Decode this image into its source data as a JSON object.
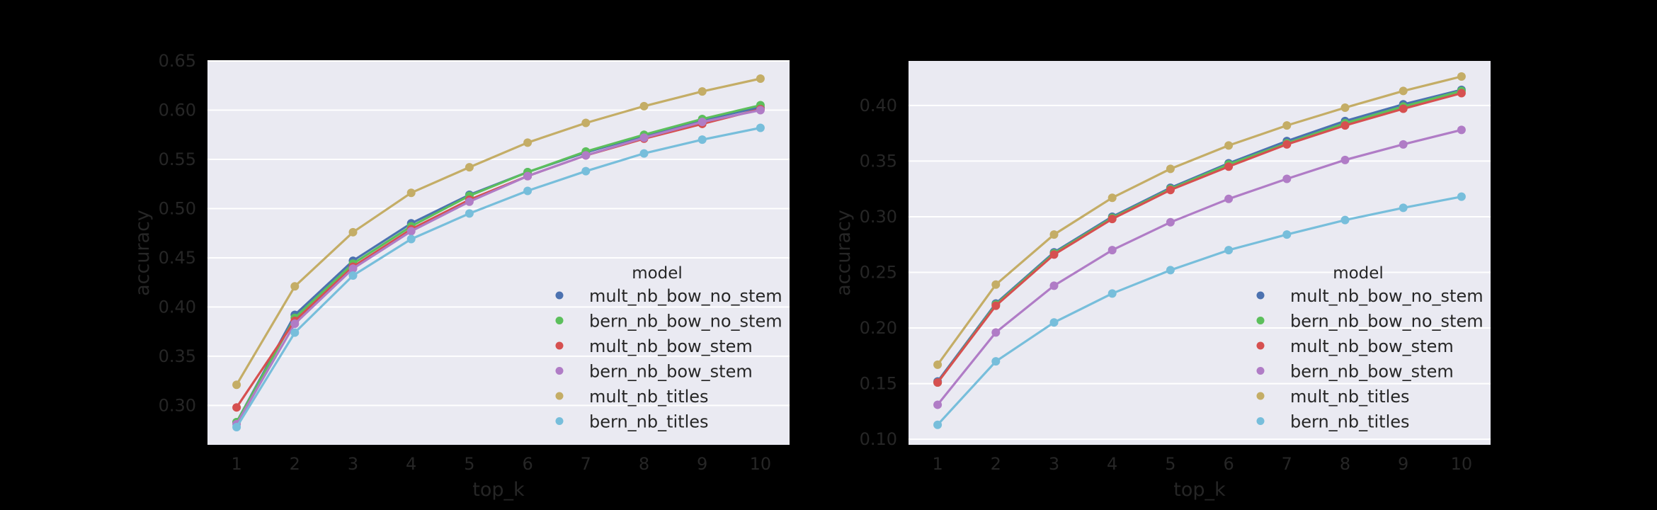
{
  "colors": {
    "figure_bg": "#000000",
    "plot_bg": "#eaeaf2",
    "grid": "#ffffff",
    "text": "#262626",
    "series": [
      "#4c72b0",
      "#5cbf5c",
      "#d65050",
      "#b07cc6",
      "#c4ad66",
      "#77bedb"
    ]
  },
  "chart_data": [
    {
      "type": "line",
      "title": "",
      "xlabel": "top_k",
      "ylabel": "accuracy",
      "x": [
        1,
        2,
        3,
        4,
        5,
        6,
        7,
        8,
        9,
        10
      ],
      "xticks": [
        "1",
        "2",
        "3",
        "4",
        "5",
        "6",
        "7",
        "8",
        "9",
        "10"
      ],
      "ylim": [
        0.26,
        0.65
      ],
      "yticks": [
        0.3,
        0.35,
        0.4,
        0.45,
        0.5,
        0.55,
        0.6,
        0.65
      ],
      "ytick_labels": [
        "0.30",
        "0.35",
        "0.40",
        "0.45",
        "0.50",
        "0.55",
        "0.60",
        "0.65"
      ],
      "grid": true,
      "legend": {
        "title": "model",
        "placement": "lower-right"
      },
      "series": [
        {
          "name": "mult_nb_bow_no_stem",
          "values": [
            0.283,
            0.392,
            0.447,
            0.485,
            0.514,
            0.537,
            0.557,
            0.574,
            0.59,
            0.603
          ]
        },
        {
          "name": "bern_nb_bow_no_stem",
          "values": [
            0.283,
            0.389,
            0.444,
            0.482,
            0.513,
            0.537,
            0.558,
            0.575,
            0.591,
            0.605
          ]
        },
        {
          "name": "mult_nb_bow_stem",
          "values": [
            0.298,
            0.386,
            0.441,
            0.479,
            0.509,
            0.533,
            0.554,
            0.571,
            0.586,
            0.601
          ]
        },
        {
          "name": "bern_nb_bow_stem",
          "values": [
            0.281,
            0.383,
            0.439,
            0.477,
            0.507,
            0.533,
            0.554,
            0.572,
            0.588,
            0.6
          ]
        },
        {
          "name": "mult_nb_titles",
          "values": [
            0.321,
            0.421,
            0.476,
            0.516,
            0.542,
            0.567,
            0.587,
            0.604,
            0.619,
            0.632
          ]
        },
        {
          "name": "bern_nb_titles",
          "values": [
            0.278,
            0.374,
            0.432,
            0.469,
            0.495,
            0.518,
            0.538,
            0.556,
            0.57,
            0.582
          ]
        }
      ]
    },
    {
      "type": "line",
      "title": "",
      "xlabel": "top_k",
      "ylabel": "accuracy",
      "x": [
        1,
        2,
        3,
        4,
        5,
        6,
        7,
        8,
        9,
        10
      ],
      "xticks": [
        "1",
        "2",
        "3",
        "4",
        "5",
        "6",
        "7",
        "8",
        "9",
        "10"
      ],
      "ylim": [
        0.095,
        0.44
      ],
      "yticks": [
        0.1,
        0.15,
        0.2,
        0.25,
        0.3,
        0.35,
        0.4
      ],
      "ytick_labels": [
        "0.10",
        "0.15",
        "0.20",
        "0.25",
        "0.30",
        "0.35",
        "0.40"
      ],
      "grid": true,
      "legend": {
        "title": "model",
        "placement": "lower-right"
      },
      "series": [
        {
          "name": "mult_nb_bow_no_stem",
          "values": [
            0.152,
            0.222,
            0.268,
            0.3,
            0.326,
            0.348,
            0.368,
            0.386,
            0.401,
            0.414
          ]
        },
        {
          "name": "bern_nb_bow_no_stem",
          "values": [
            0.151,
            0.221,
            0.267,
            0.299,
            0.325,
            0.347,
            0.366,
            0.384,
            0.399,
            0.413
          ]
        },
        {
          "name": "mult_nb_bow_stem",
          "values": [
            0.151,
            0.22,
            0.266,
            0.298,
            0.324,
            0.345,
            0.365,
            0.382,
            0.397,
            0.411
          ]
        },
        {
          "name": "bern_nb_bow_stem",
          "values": [
            0.131,
            0.196,
            0.238,
            0.27,
            0.295,
            0.316,
            0.334,
            0.351,
            0.365,
            0.378
          ]
        },
        {
          "name": "mult_nb_titles",
          "values": [
            0.167,
            0.239,
            0.284,
            0.317,
            0.343,
            0.364,
            0.382,
            0.398,
            0.413,
            0.426
          ]
        },
        {
          "name": "bern_nb_titles",
          "values": [
            0.113,
            0.17,
            0.205,
            0.231,
            0.252,
            0.27,
            0.284,
            0.297,
            0.308,
            0.318
          ]
        }
      ]
    }
  ]
}
